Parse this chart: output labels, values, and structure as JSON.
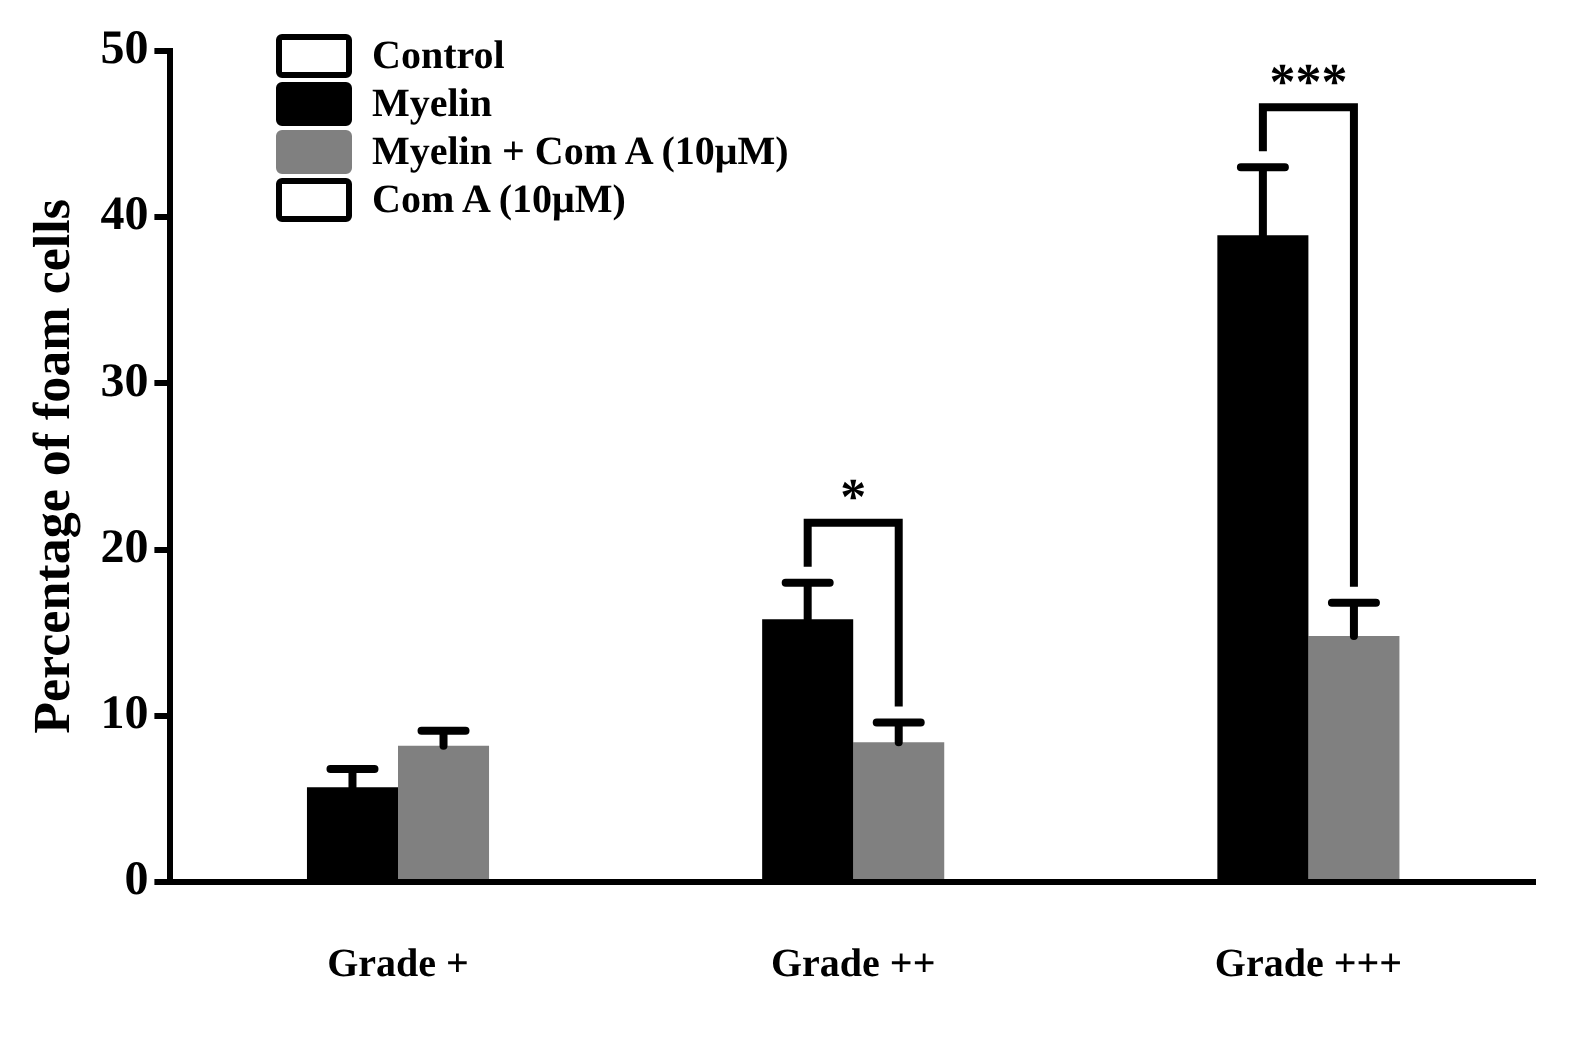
{
  "chart_data": {
    "type": "bar",
    "ylabel": "Percentage of foam cells",
    "categories": [
      "Grade +",
      "Grade ++",
      "Grade +++"
    ],
    "series": [
      {
        "name": "Control",
        "color": "#ffffff",
        "values": [
          0,
          0,
          0
        ]
      },
      {
        "name": "Myelin",
        "color": "#000000",
        "values": [
          5.7,
          15.8,
          38.9
        ],
        "errors": [
          [
            5.7,
            6.8
          ],
          [
            15.8,
            18.0
          ],
          [
            38.9,
            43.0
          ]
        ]
      },
      {
        "name": "Myelin + Com A (10μM)",
        "color": "#808080",
        "values": [
          8.2,
          8.4,
          14.8
        ],
        "errors": [
          [
            8.2,
            9.1
          ],
          [
            8.4,
            9.6
          ],
          [
            14.8,
            16.8
          ]
        ]
      },
      {
        "name": "Com A (10μM)",
        "color": "#ffffff",
        "values": [
          0,
          0,
          0
        ]
      }
    ],
    "ylim": [
      0,
      50
    ],
    "yticks": [
      0,
      10,
      20,
      30,
      40,
      50
    ],
    "grid": false,
    "legend": "top left",
    "annotations": [
      "*",
      "***"
    ]
  }
}
